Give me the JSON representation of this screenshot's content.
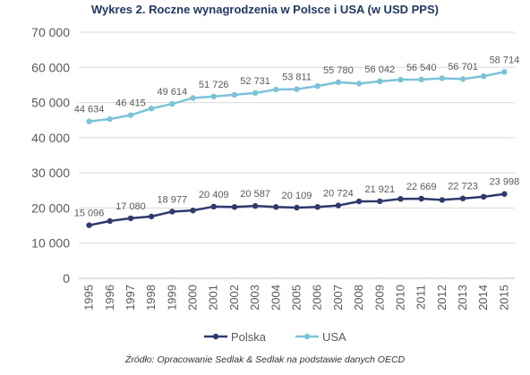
{
  "title": "Wykres 2. Roczne wynagrodzenia w Polsce i USA (w USD PPS)",
  "source": "Źródło: Opracowanie Sedlak & Sedlak na podstawie danych OECD",
  "chart_data": {
    "type": "line",
    "title": "Wykres 2. Roczne wynagrodzenia w Polsce i USA (w USD PPS)",
    "xlabel": "",
    "ylabel": "",
    "ylim": [
      0,
      70000
    ],
    "yticks": [
      0,
      10000,
      20000,
      30000,
      40000,
      50000,
      60000,
      70000
    ],
    "ytick_labels": [
      "0",
      "10 000",
      "20 000",
      "30 000",
      "40 000",
      "50 000",
      "60 000",
      "70 000"
    ],
    "grid": true,
    "legend_position": "bottom",
    "x": [
      "1995",
      "1996",
      "1997",
      "1998",
      "1999",
      "2000",
      "2001",
      "2002",
      "2003",
      "2004",
      "2005",
      "2006",
      "2007",
      "2008",
      "2009",
      "2010",
      "2011",
      "2012",
      "2013",
      "2014",
      "2015"
    ],
    "series": [
      {
        "name": "Polska",
        "color": "#2e3a6e",
        "values": [
          15096,
          16300,
          17080,
          17600,
          18977,
          19300,
          20409,
          20300,
          20587,
          20300,
          20109,
          20300,
          20724,
          21900,
          21921,
          22600,
          22669,
          22300,
          22723,
          23200,
          23998
        ],
        "labels": [
          "15 096",
          "",
          "17 080",
          "",
          "18 977",
          "",
          "20 409",
          "",
          "20 587",
          "",
          "20 109",
          "",
          "20 724",
          "",
          "21 921",
          "",
          "22 669",
          "",
          "22 723",
          "",
          "23 998"
        ]
      },
      {
        "name": "USA",
        "color": "#7cc3d8",
        "values": [
          44634,
          45300,
          46415,
          48300,
          49614,
          51300,
          51726,
          52200,
          52731,
          53700,
          53811,
          54700,
          55780,
          55400,
          56042,
          56500,
          56540,
          56900,
          56701,
          57500,
          58714
        ],
        "labels": [
          "44 634",
          "",
          "46 415",
          "",
          "49 614",
          "",
          "51 726",
          "",
          "52 731",
          "",
          "53 811",
          "",
          "55 780",
          "",
          "56 042",
          "",
          "56 540",
          "",
          "56 701",
          "",
          "58 714"
        ]
      }
    ]
  }
}
